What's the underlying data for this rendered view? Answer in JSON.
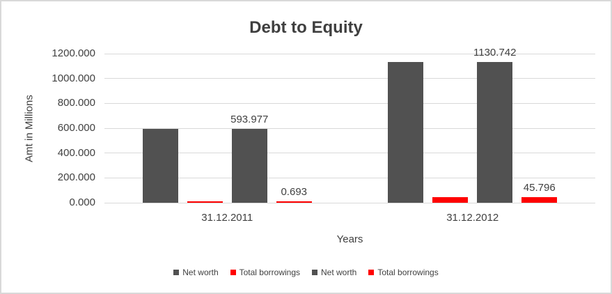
{
  "chart_data": {
    "type": "bar",
    "title": "Debt to Equity",
    "xlabel": "Years",
    "ylabel": "Amt in Millions",
    "categories": [
      "31.12.2011",
      "31.12.2012"
    ],
    "series": [
      {
        "name": "Net worth",
        "color": "#515151",
        "values": [
          593.977,
          1130.742
        ],
        "show_labels": false,
        "labels": []
      },
      {
        "name": "Total borrowings",
        "color": "#ff0000",
        "values": [
          0.693,
          45.796
        ],
        "show_labels": false,
        "labels": []
      },
      {
        "name": "Net worth",
        "color": "#515151",
        "values": [
          593.977,
          1130.742
        ],
        "show_labels": true,
        "labels": [
          "593.977",
          "1130.742"
        ]
      },
      {
        "name": "Total borrowings",
        "color": "#ff0000",
        "values": [
          0.693,
          45.796
        ],
        "show_labels": true,
        "labels": [
          "0.693",
          "45.796"
        ]
      }
    ],
    "ylim": [
      0,
      1200
    ],
    "ytick_interval": 200,
    "ytick_labels": [
      "0.000",
      "200.000",
      "400.000",
      "600.000",
      "800.000",
      "1000.000",
      "1200.000"
    ],
    "grid": true,
    "legend": {
      "position": "bottom",
      "items": [
        {
          "label": "Net worth",
          "color": "#515151"
        },
        {
          "label": "Total borrowings",
          "color": "#ff0000"
        },
        {
          "label": "Net worth",
          "color": "#515151"
        },
        {
          "label": "Total borrowings",
          "color": "#ff0000"
        }
      ]
    },
    "colors": {
      "grid": "#d9d9d9",
      "text": "#404040",
      "title": "#3f3f3f",
      "border": "#d9d9d9",
      "background": "#ffffff"
    }
  }
}
